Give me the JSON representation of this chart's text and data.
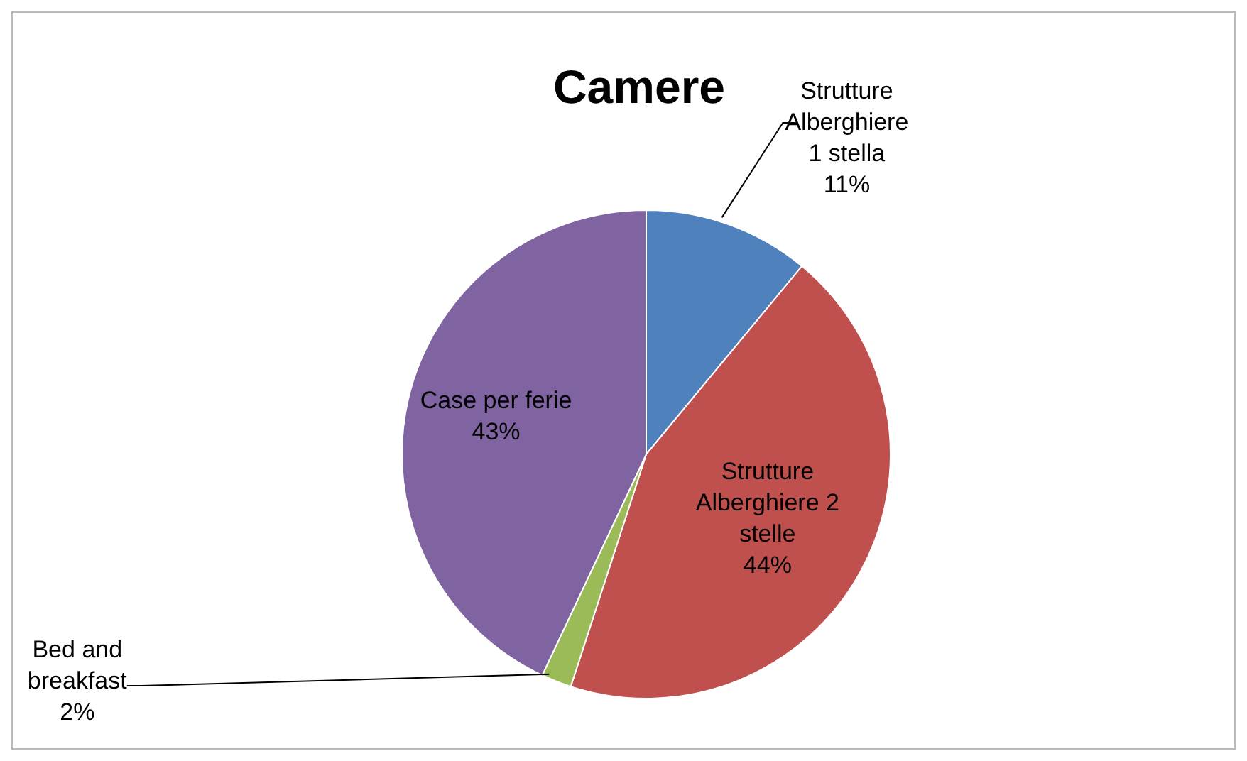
{
  "chart_data": {
    "type": "pie",
    "title": "Camere",
    "categories": [
      "Strutture Alberghiere 1 stella",
      "Strutture Alberghiere 2 stelle",
      "Bed and breakfast",
      "Case per ferie"
    ],
    "values": [
      11,
      44,
      2,
      43
    ],
    "value_labels": [
      "11%",
      "44%",
      "2%",
      "43%"
    ],
    "colors": [
      "#4f81bd",
      "#c0504d",
      "#9bbb59",
      "#8064a2"
    ],
    "legend": false
  }
}
